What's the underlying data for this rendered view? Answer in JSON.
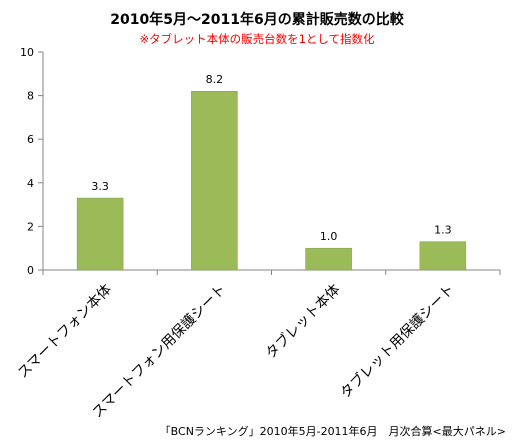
{
  "chart_data": {
    "type": "bar",
    "title": "2010年5月～2011年6月の累計販売数の比較",
    "subtitle": "※タブレット本体の販売台数を1として指数化",
    "categories": [
      "スマートフォン本体",
      "スマートフォン用保護シート",
      "タブレット本体",
      "タブレット用保護シート"
    ],
    "values": [
      3.3,
      8.2,
      1.0,
      1.3
    ],
    "value_labels": [
      "3.3",
      "8.2",
      "1.0",
      "1.3"
    ],
    "y_ticks": [
      "0",
      "2",
      "4",
      "6",
      "8",
      "10"
    ],
    "ylim": [
      0,
      10
    ],
    "grid": false,
    "colors": {
      "bar": "#9bbb59",
      "bar_edge": "#7f9c45",
      "subtitle": "#ff0000",
      "axis": "#868686"
    }
  },
  "footer": {
    "source": "「BCNランキング」2010年5月-2011年6月　月次合算<最大パネル>"
  }
}
